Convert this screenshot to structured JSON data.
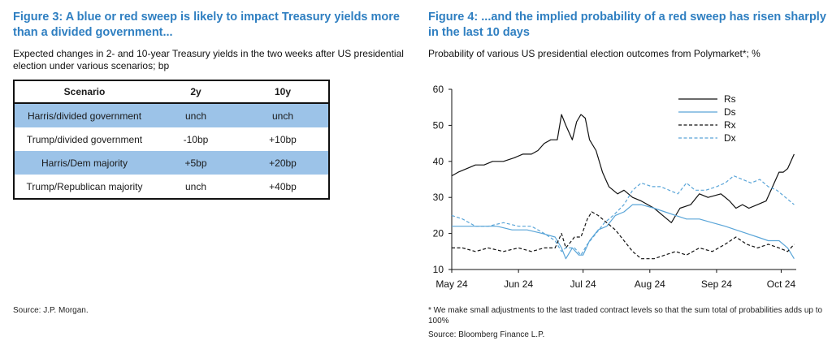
{
  "left": {
    "title": "Figure 3: A blue or red sweep is likely to impact Treasury yields more than a divided government...",
    "subtitle": "Expected changes in 2- and 10-year Treasury yields in the two weeks after US presidential election under various scenarios; bp",
    "table": {
      "headers": [
        "Scenario",
        "2y",
        "10y"
      ],
      "rows": [
        [
          "Harris/divided government",
          "unch",
          "unch"
        ],
        [
          "Trump/divided government",
          "-10bp",
          "+10bp"
        ],
        [
          "Harris/Dem majority",
          "+5bp",
          "+20bp"
        ],
        [
          "Trump/Republican majority",
          "unch",
          "+40bp"
        ]
      ],
      "highlight_color": "#9cc3e8"
    },
    "source": "Source: J.P. Morgan."
  },
  "right": {
    "title": "Figure 4: ...and the implied probability of a red sweep has risen sharply in the last 10 days",
    "subtitle": "Probability of various US presidential election outcomes from Polymarket*; %",
    "footnote": "* We make small adjustments to the last traded contract levels so that the sum total of probabilities adds up to 100%",
    "source": "Source: Bloomberg Finance L.P."
  },
  "colors": {
    "title_blue": "#2f7fc1",
    "series_black": "#111111",
    "series_blue": "#5aa5d8"
  },
  "chart_data": {
    "type": "line",
    "title": "",
    "xlabel": "",
    "ylabel": "",
    "ylim": [
      10,
      60
    ],
    "yticks": [
      10,
      20,
      30,
      40,
      50,
      60
    ],
    "xlim": [
      "2024-05-01",
      "2024-10-08"
    ],
    "xticks": [
      {
        "label": "May 24",
        "date": "2024-05-01"
      },
      {
        "label": "Jun 24",
        "date": "2024-06-01"
      },
      {
        "label": "Jul 24",
        "date": "2024-07-01"
      },
      {
        "label": "Aug 24",
        "date": "2024-08-01"
      },
      {
        "label": "Sep 24",
        "date": "2024-09-01"
      },
      {
        "label": "Oct 24",
        "date": "2024-10-01"
      }
    ],
    "grid": false,
    "legend": "top-right",
    "series": [
      {
        "name": "Rs",
        "color": "#111111",
        "dash": "solid",
        "points": [
          [
            "2024-05-01",
            36
          ],
          [
            "2024-05-04",
            37
          ],
          [
            "2024-05-08",
            38
          ],
          [
            "2024-05-12",
            39
          ],
          [
            "2024-05-16",
            39
          ],
          [
            "2024-05-20",
            40
          ],
          [
            "2024-05-25",
            40
          ],
          [
            "2024-05-30",
            41
          ],
          [
            "2024-06-03",
            42
          ],
          [
            "2024-06-07",
            42
          ],
          [
            "2024-06-10",
            43
          ],
          [
            "2024-06-13",
            45
          ],
          [
            "2024-06-16",
            46
          ],
          [
            "2024-06-19",
            46
          ],
          [
            "2024-06-21",
            53
          ],
          [
            "2024-06-23",
            50
          ],
          [
            "2024-06-26",
            46
          ],
          [
            "2024-06-28",
            51
          ],
          [
            "2024-06-30",
            53
          ],
          [
            "2024-07-02",
            52
          ],
          [
            "2024-07-04",
            46
          ],
          [
            "2024-07-07",
            43
          ],
          [
            "2024-07-10",
            37
          ],
          [
            "2024-07-13",
            33
          ],
          [
            "2024-07-17",
            31
          ],
          [
            "2024-07-20",
            32
          ],
          [
            "2024-07-24",
            30
          ],
          [
            "2024-07-28",
            29
          ],
          [
            "2024-08-03",
            27
          ],
          [
            "2024-08-07",
            25
          ],
          [
            "2024-08-11",
            23
          ],
          [
            "2024-08-15",
            27
          ],
          [
            "2024-08-20",
            28
          ],
          [
            "2024-08-24",
            31
          ],
          [
            "2024-08-28",
            30
          ],
          [
            "2024-09-03",
            31
          ],
          [
            "2024-09-07",
            29
          ],
          [
            "2024-09-10",
            27
          ],
          [
            "2024-09-13",
            28
          ],
          [
            "2024-09-16",
            27
          ],
          [
            "2024-09-20",
            28
          ],
          [
            "2024-09-24",
            29
          ],
          [
            "2024-09-27",
            33
          ],
          [
            "2024-09-30",
            37
          ],
          [
            "2024-10-02",
            37
          ],
          [
            "2024-10-04",
            38
          ],
          [
            "2024-10-07",
            42
          ]
        ]
      },
      {
        "name": "Ds",
        "color": "#5aa5d8",
        "dash": "solid",
        "points": [
          [
            "2024-05-01",
            22
          ],
          [
            "2024-05-08",
            22
          ],
          [
            "2024-05-15",
            22
          ],
          [
            "2024-05-22",
            22
          ],
          [
            "2024-05-29",
            21
          ],
          [
            "2024-06-05",
            21
          ],
          [
            "2024-06-12",
            20
          ],
          [
            "2024-06-18",
            19
          ],
          [
            "2024-06-21",
            16
          ],
          [
            "2024-06-23",
            13
          ],
          [
            "2024-06-26",
            16
          ],
          [
            "2024-06-29",
            14
          ],
          [
            "2024-07-01",
            14
          ],
          [
            "2024-07-04",
            18
          ],
          [
            "2024-07-08",
            21
          ],
          [
            "2024-07-12",
            22
          ],
          [
            "2024-07-16",
            25
          ],
          [
            "2024-07-20",
            26
          ],
          [
            "2024-07-24",
            28
          ],
          [
            "2024-07-28",
            28
          ],
          [
            "2024-08-03",
            27
          ],
          [
            "2024-08-08",
            26
          ],
          [
            "2024-08-13",
            25
          ],
          [
            "2024-08-18",
            24
          ],
          [
            "2024-08-24",
            24
          ],
          [
            "2024-08-30",
            23
          ],
          [
            "2024-09-05",
            22
          ],
          [
            "2024-09-10",
            21
          ],
          [
            "2024-09-15",
            20
          ],
          [
            "2024-09-20",
            19
          ],
          [
            "2024-09-25",
            18
          ],
          [
            "2024-09-30",
            18
          ],
          [
            "2024-10-04",
            16
          ],
          [
            "2024-10-07",
            13
          ]
        ]
      },
      {
        "name": "Rx",
        "color": "#111111",
        "dash": "dashed",
        "points": [
          [
            "2024-05-01",
            16
          ],
          [
            "2024-05-06",
            16
          ],
          [
            "2024-05-12",
            15
          ],
          [
            "2024-05-18",
            16
          ],
          [
            "2024-05-25",
            15
          ],
          [
            "2024-06-01",
            16
          ],
          [
            "2024-06-07",
            15
          ],
          [
            "2024-06-13",
            16
          ],
          [
            "2024-06-18",
            16
          ],
          [
            "2024-06-21",
            20
          ],
          [
            "2024-06-23",
            16
          ],
          [
            "2024-06-27",
            19
          ],
          [
            "2024-06-30",
            19
          ],
          [
            "2024-07-03",
            24
          ],
          [
            "2024-07-05",
            26
          ],
          [
            "2024-07-08",
            25
          ],
          [
            "2024-07-12",
            23
          ],
          [
            "2024-07-16",
            21
          ],
          [
            "2024-07-20",
            18
          ],
          [
            "2024-07-24",
            15
          ],
          [
            "2024-07-28",
            13
          ],
          [
            "2024-08-03",
            13
          ],
          [
            "2024-08-08",
            14
          ],
          [
            "2024-08-13",
            15
          ],
          [
            "2024-08-18",
            14
          ],
          [
            "2024-08-24",
            16
          ],
          [
            "2024-08-30",
            15
          ],
          [
            "2024-09-05",
            17
          ],
          [
            "2024-09-10",
            19
          ],
          [
            "2024-09-15",
            17
          ],
          [
            "2024-09-20",
            16
          ],
          [
            "2024-09-25",
            17
          ],
          [
            "2024-09-30",
            16
          ],
          [
            "2024-10-04",
            15
          ],
          [
            "2024-10-07",
            17
          ]
        ]
      },
      {
        "name": "Dx",
        "color": "#5aa5d8",
        "dash": "dashed",
        "points": [
          [
            "2024-05-01",
            25
          ],
          [
            "2024-05-06",
            24
          ],
          [
            "2024-05-12",
            22
          ],
          [
            "2024-05-18",
            22
          ],
          [
            "2024-05-25",
            23
          ],
          [
            "2024-06-01",
            22
          ],
          [
            "2024-06-07",
            22
          ],
          [
            "2024-06-13",
            20
          ],
          [
            "2024-06-18",
            18
          ],
          [
            "2024-06-21",
            15
          ],
          [
            "2024-06-23",
            16
          ],
          [
            "2024-06-27",
            16
          ],
          [
            "2024-06-30",
            14
          ],
          [
            "2024-07-03",
            17
          ],
          [
            "2024-07-07",
            20
          ],
          [
            "2024-07-11",
            23
          ],
          [
            "2024-07-15",
            25
          ],
          [
            "2024-07-20",
            28
          ],
          [
            "2024-07-24",
            32
          ],
          [
            "2024-07-28",
            34
          ],
          [
            "2024-08-02",
            33
          ],
          [
            "2024-08-06",
            33
          ],
          [
            "2024-08-10",
            32
          ],
          [
            "2024-08-14",
            31
          ],
          [
            "2024-08-18",
            34
          ],
          [
            "2024-08-22",
            32
          ],
          [
            "2024-08-27",
            32
          ],
          [
            "2024-09-01",
            33
          ],
          [
            "2024-09-05",
            34
          ],
          [
            "2024-09-09",
            36
          ],
          [
            "2024-09-13",
            35
          ],
          [
            "2024-09-17",
            34
          ],
          [
            "2024-09-21",
            35
          ],
          [
            "2024-09-25",
            33
          ],
          [
            "2024-09-29",
            32
          ],
          [
            "2024-10-03",
            30
          ],
          [
            "2024-10-07",
            28
          ]
        ]
      }
    ]
  }
}
